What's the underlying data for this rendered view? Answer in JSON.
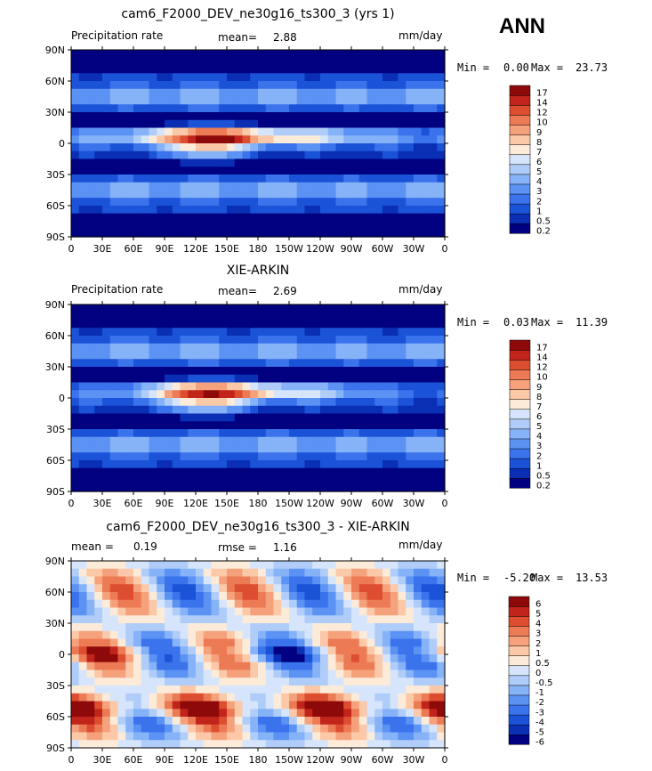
{
  "season": "ANN",
  "colors": {
    "precip": [
      "#000080",
      "#0a2fb4",
      "#1a52d8",
      "#3a73ec",
      "#5b92f3",
      "#86b2f7",
      "#b0cdf9",
      "#d6e5fb",
      "#fcebd9",
      "#fbc8a8",
      "#f5a27c",
      "#ec7a55",
      "#dd4d2f",
      "#c1241a",
      "#8e0a0a"
    ],
    "diff": [
      "#000080",
      "#0a2fb4",
      "#1a52d8",
      "#3a73ec",
      "#5b92f3",
      "#86b2f7",
      "#b0cdf9",
      "#d6e5fb",
      "#fcebd9",
      "#fbc8a8",
      "#f5a27c",
      "#ec7a55",
      "#dd4d2f",
      "#c1241a",
      "#8e0a0a"
    ]
  },
  "chart_data": [
    {
      "type": "heatmap",
      "title": "cam6_F2000_DEV_ne30g16_ts300_3 (yrs 1)",
      "left_label": "Precipitation rate",
      "stat_label": "mean=",
      "stat_value": "2.88",
      "units": "mm/day",
      "min_label": "Min =",
      "min": "0.00",
      "max_label": "Max =",
      "max": "23.73",
      "colorbar_levels": [
        "0.2",
        "0.5",
        "1",
        "2",
        "3",
        "4",
        "5",
        "6",
        "7",
        "8",
        "9",
        "10",
        "12",
        "14",
        "17"
      ],
      "x_ticks": [
        "0",
        "30E",
        "60E",
        "90E",
        "120E",
        "150E",
        "180",
        "150W",
        "120W",
        "90W",
        "60W",
        "30W",
        "0"
      ],
      "y_ticks": [
        "90N",
        "60N",
        "30N",
        "0",
        "30S",
        "60S",
        "90S"
      ],
      "grid": false
    },
    {
      "type": "heatmap",
      "title": "XIE-ARKIN",
      "left_label": "Precipitation rate",
      "stat_label": "mean=",
      "stat_value": "2.69",
      "units": "mm/day",
      "min_label": "Min =",
      "min": "0.03",
      "max_label": "Max =",
      "max": "11.39",
      "colorbar_levels": [
        "0.2",
        "0.5",
        "1",
        "2",
        "3",
        "4",
        "5",
        "6",
        "7",
        "8",
        "9",
        "10",
        "12",
        "14",
        "17"
      ],
      "x_ticks": [
        "0",
        "30E",
        "60E",
        "90E",
        "120E",
        "150E",
        "180",
        "150W",
        "120W",
        "90W",
        "60W",
        "30W",
        "0"
      ],
      "y_ticks": [
        "90N",
        "60N",
        "30N",
        "0",
        "30S",
        "60S",
        "90S"
      ],
      "grid": false
    },
    {
      "type": "heatmap",
      "title": "cam6_F2000_DEV_ne30g16_ts300_3 - XIE-ARKIN",
      "left_label": "mean =",
      "left_value": "0.19",
      "stat_label": "rmse =",
      "stat_value": "1.16",
      "units": "mm/day",
      "min_label": "Min =",
      "min": "-5.20",
      "max_label": "Max =",
      "max": "13.53",
      "colorbar_levels": [
        "-6",
        "-5",
        "-4",
        "-3",
        "-2",
        "-1",
        "-0.5",
        "0",
        "0.5",
        "1",
        "2",
        "3",
        "4",
        "5",
        "6"
      ],
      "x_ticks": [
        "0",
        "30E",
        "60E",
        "90E",
        "120E",
        "150E",
        "180",
        "150W",
        "120W",
        "90W",
        "60W",
        "30W",
        "0"
      ],
      "y_ticks": [
        "90N",
        "60N",
        "30N",
        "0",
        "30S",
        "60S",
        "90S"
      ],
      "grid": false
    }
  ]
}
